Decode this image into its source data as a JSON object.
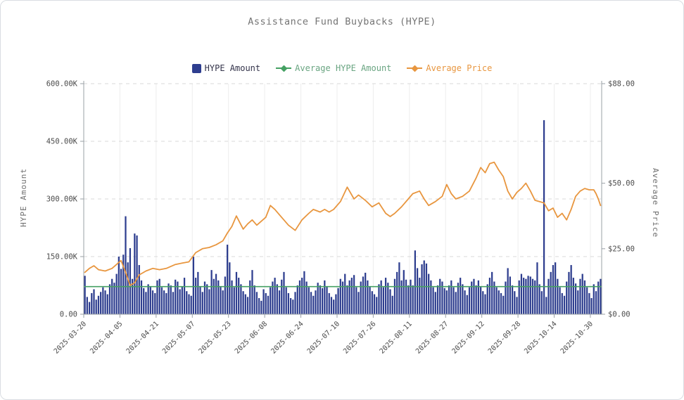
{
  "chart": {
    "title": "Assistance Fund Buybacks (HYPE)"
  },
  "legend": {
    "items": [
      {
        "label": "HYPE Amount",
        "color": "#2e3e8f",
        "text_color": "#33334a",
        "marker": "square"
      },
      {
        "label": "Average HYPE Amount",
        "color": "#45a163",
        "text_color": "#6aa582",
        "marker": "line-diamond"
      },
      {
        "label": "Average Price",
        "color": "#e8963f",
        "text_color": "#e8963f",
        "marker": "line-diamond"
      }
    ]
  },
  "colors": {
    "bar": "#2e3e8f",
    "avg_line": "#45a163",
    "price_line": "#e8963f",
    "grid_h": "#d9d9d9",
    "grid_v": "#ededed",
    "axis": "#9aa0a6",
    "tick_text": "#4b4b4b",
    "title_text": "#757575"
  },
  "chart_data": {
    "type": "bar",
    "title": "Assistance Fund Buybacks (HYPE)",
    "grid": true,
    "legend_position": "top-center",
    "y_left": {
      "label": "HYPE Amount",
      "min": 0,
      "max": 600,
      "unit": "K",
      "tick_values": [
        0,
        150,
        300,
        450,
        600
      ],
      "tick_labels": [
        "0.00",
        "150.00K",
        "300.00K",
        "450.00K",
        "600.00K"
      ]
    },
    "y_right": {
      "label": "Average Price",
      "min": 0,
      "max": 88,
      "unit": "USD",
      "tick_values": [
        0,
        25,
        50,
        88
      ],
      "tick_labels": [
        "$0.00",
        "$25.00",
        "$50.00",
        "$88.00"
      ]
    },
    "x": {
      "start_date": "2025-03-20",
      "interval_days": 1,
      "total_days": 229,
      "tick_day_offsets": [
        0,
        16,
        32,
        48,
        64,
        80,
        96,
        112,
        128,
        144,
        160,
        176,
        192,
        208,
        224
      ],
      "tick_labels": [
        "2025-03-20",
        "2025-04-05",
        "2025-04-21",
        "2025-05-07",
        "2025-05-23",
        "2025-06-08",
        "2025-06-24",
        "2025-07-10",
        "2025-07-26",
        "2025-08-11",
        "2025-08-27",
        "2025-09-12",
        "2025-09-28",
        "2025-10-14",
        "2025-10-30"
      ]
    },
    "series": [
      {
        "name": "HYPE Amount",
        "type": "bar",
        "axis": "left",
        "unit": "K",
        "values": [
          100,
          45,
          32,
          55,
          65,
          38,
          48,
          58,
          70,
          62,
          52,
          78,
          92,
          82,
          105,
          150,
          118,
          155,
          255,
          135,
          172,
          92,
          210,
          205,
          128,
          88,
          68,
          58,
          78,
          72,
          62,
          55,
          88,
          92,
          70,
          62,
          55,
          80,
          75,
          58,
          90,
          85,
          65,
          72,
          95,
          60,
          52,
          48,
          150,
          95,
          110,
          72,
          58,
          85,
          78,
          65,
          115,
          92,
          105,
          88,
          72,
          62,
          98,
          181,
          135,
          88,
          70,
          110,
          95,
          78,
          60,
          52,
          45,
          88,
          115,
          75,
          58,
          42,
          35,
          65,
          55,
          48,
          70,
          85,
          95,
          78,
          62,
          90,
          110,
          70,
          55,
          42,
          38,
          58,
          75,
          88,
          95,
          112,
          85,
          70,
          58,
          48,
          62,
          82,
          75,
          68,
          88,
          72,
          55,
          45,
          38,
          52,
          68,
          92,
          85,
          105,
          75,
          88,
          95,
          102,
          70,
          58,
          85,
          98,
          108,
          88,
          72,
          60,
          52,
          45,
          78,
          88,
          70,
          95,
          82,
          65,
          48,
          92,
          110,
          135,
          88,
          115,
          90,
          75,
          90,
          75,
          166,
          120,
          95,
          130,
          140,
          132,
          105,
          88,
          70,
          58,
          75,
          92,
          85,
          68,
          62,
          75,
          88,
          70,
          58,
          82,
          95,
          78,
          62,
          50,
          70,
          85,
          92,
          75,
          88,
          72,
          60,
          52,
          78,
          95,
          110,
          85,
          70,
          62,
          55,
          48,
          85,
          120,
          98,
          75,
          60,
          45,
          88,
          105,
          95,
          92,
          100,
          98,
          92,
          88,
          135,
          78,
          60,
          505,
          45,
          92,
          110,
          128,
          135,
          92,
          70,
          55,
          48,
          85,
          110,
          128,
          95,
          80,
          62,
          92,
          105,
          88,
          70,
          55,
          42,
          78,
          60,
          85,
          92
        ]
      },
      {
        "name": "Average HYPE Amount",
        "type": "hline",
        "axis": "left",
        "unit": "K",
        "value": 72
      },
      {
        "name": "Average Price",
        "type": "line",
        "axis": "right",
        "unit": "USD",
        "points": [
          [
            0,
            16
          ],
          [
            2,
            17.5
          ],
          [
            4,
            18.5
          ],
          [
            6,
            17
          ],
          [
            9,
            16.5
          ],
          [
            12,
            17.5
          ],
          [
            14,
            19
          ],
          [
            16,
            20.5
          ],
          [
            18,
            16
          ],
          [
            20,
            11
          ],
          [
            22,
            12
          ],
          [
            24,
            15
          ],
          [
            27,
            16.5
          ],
          [
            30,
            17.5
          ],
          [
            33,
            17
          ],
          [
            36,
            17.5
          ],
          [
            40,
            19
          ],
          [
            43,
            19.5
          ],
          [
            46,
            20
          ],
          [
            49,
            23.5
          ],
          [
            52,
            25
          ],
          [
            55,
            25.5
          ],
          [
            58,
            26.5
          ],
          [
            61,
            28
          ],
          [
            63,
            31
          ],
          [
            65,
            33.5
          ],
          [
            67,
            37.5
          ],
          [
            70,
            32.5
          ],
          [
            72,
            34.5
          ],
          [
            74,
            36
          ],
          [
            76,
            34
          ],
          [
            78,
            35.5
          ],
          [
            80,
            37
          ],
          [
            82,
            41.5
          ],
          [
            84,
            40
          ],
          [
            86,
            38
          ],
          [
            88,
            36
          ],
          [
            90,
            34
          ],
          [
            93,
            32
          ],
          [
            96,
            36
          ],
          [
            99,
            38.5
          ],
          [
            101,
            40
          ],
          [
            104,
            39
          ],
          [
            106,
            40
          ],
          [
            108,
            39
          ],
          [
            110,
            40
          ],
          [
            113,
            43
          ],
          [
            116,
            48.5
          ],
          [
            119,
            44
          ],
          [
            121,
            45.5
          ],
          [
            124,
            43.5
          ],
          [
            127,
            41
          ],
          [
            130,
            42.5
          ],
          [
            133,
            38.5
          ],
          [
            135,
            37.3
          ],
          [
            137,
            38.5
          ],
          [
            140,
            41
          ],
          [
            143,
            44
          ],
          [
            145,
            46
          ],
          [
            148,
            47
          ],
          [
            150,
            44
          ],
          [
            152,
            41.5
          ],
          [
            155,
            43
          ],
          [
            158,
            45
          ],
          [
            160,
            49.5
          ],
          [
            162,
            46
          ],
          [
            164,
            44
          ],
          [
            167,
            45
          ],
          [
            170,
            47
          ],
          [
            173,
            52
          ],
          [
            175,
            56
          ],
          [
            177,
            54
          ],
          [
            179,
            57.5
          ],
          [
            181,
            58
          ],
          [
            183,
            55
          ],
          [
            185,
            52.5
          ],
          [
            187,
            47
          ],
          [
            189,
            44
          ],
          [
            191,
            46.5
          ],
          [
            193,
            48
          ],
          [
            195,
            50
          ],
          [
            197,
            47
          ],
          [
            199,
            43.5
          ],
          [
            201,
            43
          ],
          [
            203,
            42.5
          ],
          [
            205,
            39.5
          ],
          [
            207,
            40.5
          ],
          [
            209,
            37
          ],
          [
            211,
            38.5
          ],
          [
            213,
            36
          ],
          [
            215,
            40
          ],
          [
            217,
            45
          ],
          [
            219,
            47
          ],
          [
            221,
            48
          ],
          [
            223,
            47.5
          ],
          [
            225,
            47.5
          ],
          [
            226,
            46
          ],
          [
            227,
            44
          ],
          [
            228,
            41.5
          ]
        ]
      }
    ]
  }
}
